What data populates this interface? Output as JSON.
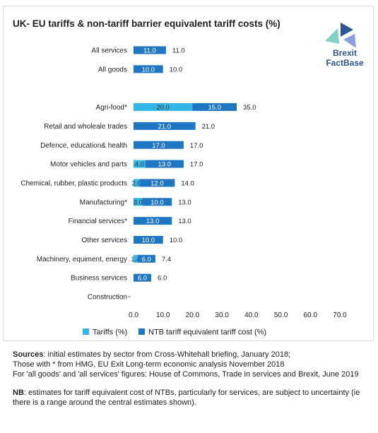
{
  "chart_data": {
    "type": "bar",
    "orientation": "horizontal",
    "stacked": true,
    "title": "UK- EU tariffs & non-tariff barrier equivalent tariff costs (%)",
    "categories": [
      "All services",
      "All goods",
      "",
      "Agri-food*",
      "Retail and wholeale trades",
      "Defence, education& health",
      "Motor vehicles and parts",
      "Chemical, rubber, plastic products",
      "Manufacturing*",
      "Financial services*",
      "Other services",
      "Machinery, equiment, energy",
      "Business services",
      "Construction"
    ],
    "series": [
      {
        "name": "Tariffs (%)",
        "color": "#33b5e5",
        "values": [
          null,
          null,
          null,
          20.0,
          null,
          null,
          4.0,
          2.0,
          3.0,
          null,
          null,
          1.4,
          null,
          null
        ],
        "labels": [
          "",
          "",
          "",
          "20.0",
          "",
          "",
          "4.0",
          "2.0",
          "3.0",
          "",
          "",
          "1.4",
          "",
          ""
        ]
      },
      {
        "name": "NTB tariff equivalent tariff cost (%)",
        "color": "#1f77c4",
        "values": [
          11.0,
          10.0,
          null,
          15.0,
          21.0,
          17.0,
          13.0,
          12.0,
          10.0,
          13.0,
          10.0,
          6.0,
          6.0,
          null
        ],
        "labels": [
          "11.0",
          "10.0",
          "",
          "15.0",
          "21.0",
          "17.0",
          "13.0",
          "12.0",
          "10.0",
          "13.0",
          "10.0",
          "6.0",
          "6.0",
          ""
        ]
      }
    ],
    "totals": [
      "11.0",
      "10.0",
      "",
      "35.0",
      "21.0",
      "17.0",
      "17.0",
      "14.0",
      "13.0",
      "13.0",
      "10.0",
      "7.4",
      "6.0",
      ""
    ],
    "xlim": [
      0,
      70
    ],
    "xticks": [
      "0.0",
      "10.0",
      "20.0",
      "30.0",
      "40.0",
      "50.0",
      "60.0",
      "70.0"
    ],
    "grid": false,
    "legend_position": "bottom"
  },
  "logo": {
    "line1": "Brexit",
    "line2": "FactBase"
  },
  "notes": {
    "sources_label": "Sources",
    "sources_text": ": initial estimates by sector from Cross-Whitehall briefing, January 2018;",
    "line2": "Those with * from HMG, EU Exit Long-term economic analysis November 2018",
    "line3": "For 'all goods' and 'all services' figures: House of Commons, Trade in services and Brexit, June 2019",
    "nb_label": "NB",
    "nb_text": ": estimates for tariff equivalent cost of NTBs, particularly for services, are subject to uncertainty (ie there is a range around the central estimates shown)."
  }
}
